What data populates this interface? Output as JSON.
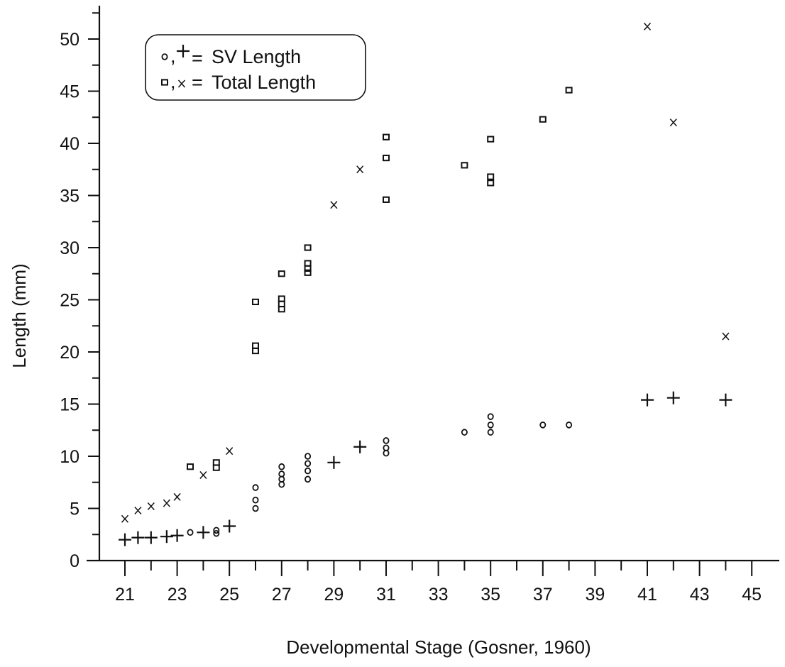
{
  "chart_data": {
    "type": "scatter",
    "xlabel": "Developmental Stage  (Gosner,  1960)",
    "ylabel": "Length (mm)",
    "xlim": [
      20.5,
      46
    ],
    "ylim": [
      0,
      53
    ],
    "x_ticks": [
      21,
      22,
      23,
      24,
      25,
      26,
      27,
      28,
      29,
      30,
      31,
      32,
      33,
      34,
      35,
      36,
      37,
      38,
      39,
      40,
      41,
      42,
      43,
      44,
      45
    ],
    "x_tick_labels": [
      "21",
      "23",
      "25",
      "27",
      "29",
      "31",
      "33",
      "35",
      "37",
      "39",
      "41",
      "43",
      "45"
    ],
    "y_tick_labels": [
      "0",
      "5",
      "10",
      "15",
      "20",
      "25",
      "30",
      "35",
      "40",
      "45",
      "50"
    ],
    "legend": [
      {
        "markers": "o,+",
        "label": "SV  Length"
      },
      {
        "markers": "□,x",
        "label": "Total  Length"
      }
    ],
    "legend_position": "top-left",
    "grid": false,
    "series": [
      {
        "marker": "circle",
        "points": [
          [
            23.5,
            2.7
          ],
          [
            24.5,
            2.6
          ],
          [
            24.5,
            2.9
          ],
          [
            26,
            5.0
          ],
          [
            26,
            5.8
          ],
          [
            26,
            7.0
          ],
          [
            27,
            7.3
          ],
          [
            27,
            7.8
          ],
          [
            27,
            8.3
          ],
          [
            27,
            9.0
          ],
          [
            28,
            7.8
          ],
          [
            28,
            8.6
          ],
          [
            28,
            9.3
          ],
          [
            28,
            10.0
          ],
          [
            31,
            10.3
          ],
          [
            31,
            10.8
          ],
          [
            31,
            11.5
          ],
          [
            34,
            12.3
          ],
          [
            35,
            12.3
          ],
          [
            35,
            13.0
          ],
          [
            35,
            13.8
          ],
          [
            37,
            13.0
          ],
          [
            38,
            13.0
          ]
        ]
      },
      {
        "marker": "plus",
        "points": [
          [
            21,
            2.0
          ],
          [
            21.5,
            2.2
          ],
          [
            22,
            2.2
          ],
          [
            22.6,
            2.3
          ],
          [
            23,
            2.4
          ],
          [
            24,
            2.7
          ],
          [
            25,
            3.3
          ],
          [
            29,
            9.4
          ],
          [
            30,
            10.9
          ],
          [
            41,
            15.4
          ],
          [
            42,
            15.6
          ],
          [
            44,
            15.4
          ]
        ]
      },
      {
        "marker": "square",
        "points": [
          [
            23.5,
            9.0
          ],
          [
            24.5,
            8.9
          ],
          [
            24.5,
            9.4
          ],
          [
            26,
            20.1
          ],
          [
            26,
            20.6
          ],
          [
            26,
            24.8
          ],
          [
            27,
            24.1
          ],
          [
            27,
            24.6
          ],
          [
            27,
            25.1
          ],
          [
            27,
            27.5
          ],
          [
            28,
            27.6
          ],
          [
            28,
            28.0
          ],
          [
            28,
            28.5
          ],
          [
            28,
            30.0
          ],
          [
            31,
            34.6
          ],
          [
            31,
            38.6
          ],
          [
            31,
            40.6
          ],
          [
            34,
            37.9
          ],
          [
            35,
            36.2
          ],
          [
            35,
            36.8
          ],
          [
            35,
            40.4
          ],
          [
            37,
            42.3
          ],
          [
            38,
            45.1
          ]
        ]
      },
      {
        "marker": "x",
        "points": [
          [
            21,
            4.0
          ],
          [
            21.5,
            4.8
          ],
          [
            22,
            5.2
          ],
          [
            22.6,
            5.5
          ],
          [
            23,
            6.1
          ],
          [
            24,
            8.2
          ],
          [
            25,
            10.5
          ],
          [
            29,
            34.1
          ],
          [
            30,
            37.5
          ],
          [
            41,
            51.2
          ],
          [
            42,
            42.0
          ],
          [
            44,
            21.5
          ]
        ]
      }
    ]
  }
}
